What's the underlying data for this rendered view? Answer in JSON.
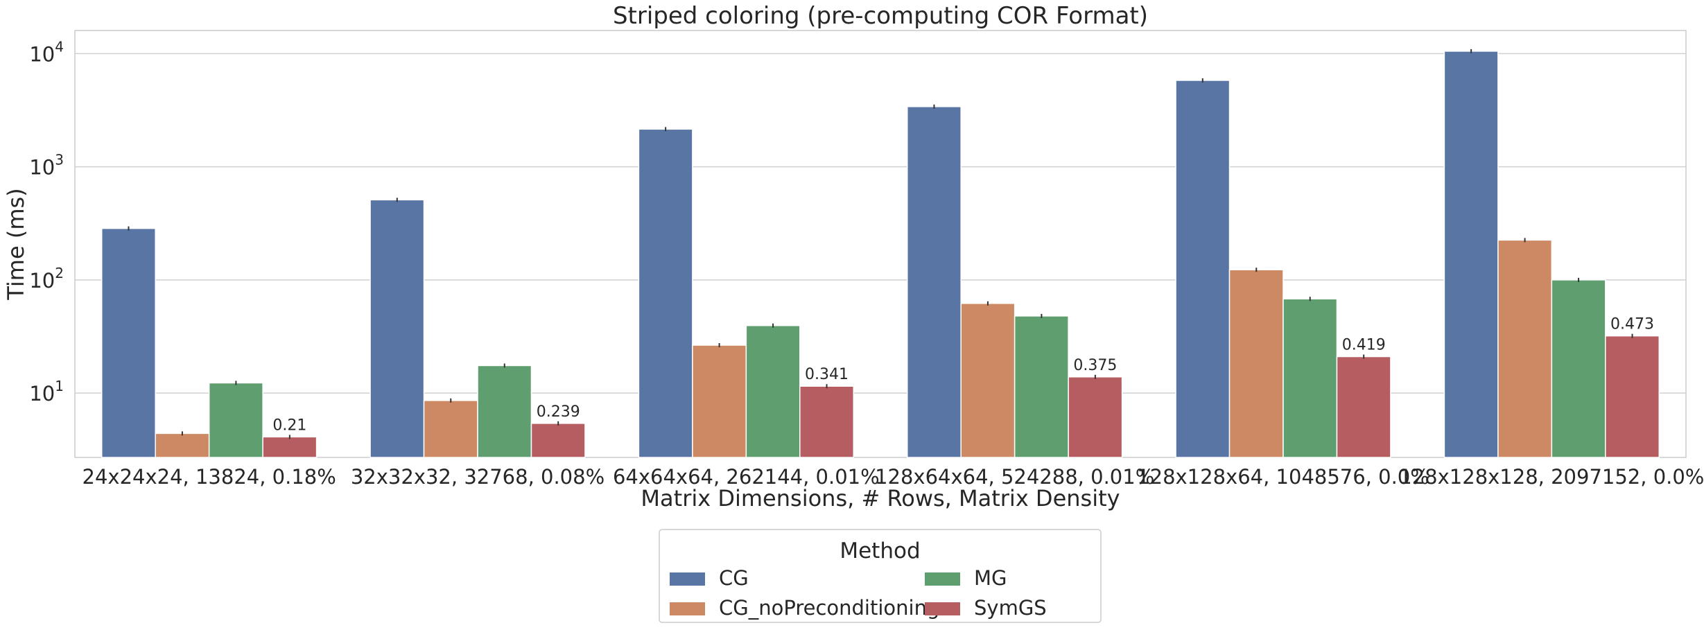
{
  "chart_data": {
    "type": "bar",
    "title": "Striped coloring (pre-computing COR Format)",
    "xlabel": "Matrix Dimensions, # Rows, Matrix Density",
    "ylabel": "Time (ms)",
    "yscale": "log",
    "ylim": [
      2.7,
      16000
    ],
    "y_ticks": [
      10,
      100,
      1000,
      10000
    ],
    "grid": true,
    "categories": [
      "24x24x24, 13824, 0.18%",
      "32x32x32, 32768, 0.08%",
      "64x64x64, 262144, 0.01%",
      "128x64x64, 524288, 0.01%",
      "128x128x64, 1048576, 0.0%",
      "128x128x128, 2097152, 0.0%"
    ],
    "series": [
      {
        "name": "CG",
        "color": "#5975a4",
        "values": [
          285,
          510,
          2150,
          3400,
          5800,
          10500
        ]
      },
      {
        "name": "CG_noPreconditioning",
        "color": "#cc8963",
        "values": [
          4.4,
          8.6,
          26.5,
          62,
          123,
          225
        ]
      },
      {
        "name": "MG",
        "color": "#5f9e6e",
        "values": [
          12.3,
          17.5,
          39.5,
          48,
          68,
          100
        ]
      },
      {
        "name": "SymGS",
        "color": "#b55d60",
        "values": [
          4.1,
          5.4,
          11.5,
          13.9,
          21,
          32
        ]
      }
    ],
    "bar_annotations": {
      "series": "SymGS",
      "labels": [
        "0.21",
        "0.239",
        "0.341",
        "0.375",
        "0.419",
        "0.473"
      ]
    },
    "legend": {
      "title": "Method",
      "placement": "bottom-center",
      "columns": 2
    }
  }
}
